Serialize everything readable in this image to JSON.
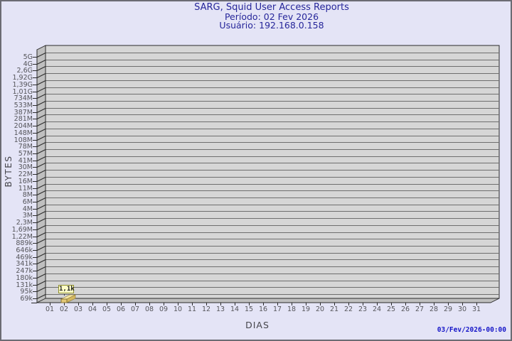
{
  "header": {
    "title": "SARG, Squid User Access Reports",
    "period": "Período: 02 Fev 2026",
    "user": "Usuário: 192.168.0.158"
  },
  "footer": {
    "generated": "03/Fev/2026-00:00"
  },
  "chart_data": {
    "type": "bar",
    "title": "SARG, Squid User Access Reports",
    "subtitle": [
      "Período: 02 Fev 2026",
      "Usuário: 192.168.0.158"
    ],
    "xlabel": "DIAS",
    "ylabel": "BYTES",
    "y_scale": "logarithmic",
    "categories": [
      "01",
      "02",
      "03",
      "04",
      "05",
      "06",
      "07",
      "08",
      "09",
      "10",
      "11",
      "12",
      "13",
      "14",
      "15",
      "16",
      "17",
      "18",
      "19",
      "20",
      "21",
      "22",
      "23",
      "24",
      "25",
      "26",
      "27",
      "28",
      "29",
      "30",
      "31"
    ],
    "values": [
      0,
      1100,
      0,
      0,
      0,
      0,
      0,
      0,
      0,
      0,
      0,
      0,
      0,
      0,
      0,
      0,
      0,
      0,
      0,
      0,
      0,
      0,
      0,
      0,
      0,
      0,
      0,
      0,
      0,
      0,
      0
    ],
    "point_label": "1,1k",
    "bars": [
      {
        "day": "02",
        "label": "1,1k",
        "bytes": 1100
      }
    ],
    "y_tick_labels_top_to_bottom": [
      "5G",
      "4G",
      "2,6G",
      "1,92G",
      "1,39G",
      "1,01G",
      "734M",
      "533M",
      "387M",
      "281M",
      "204M",
      "148M",
      "108M",
      "78M",
      "57M",
      "41M",
      "30M",
      "22M",
      "16M",
      "11M",
      "8M",
      "6M",
      "4M",
      "3M",
      "2,3M",
      "1,69M",
      "1,22M",
      "889k",
      "646k",
      "469k",
      "341k",
      "247k",
      "180k",
      "131k",
      "95k",
      "69k"
    ],
    "ylim_labels": [
      "69k",
      "5G"
    ],
    "grid": true,
    "legend": "none"
  },
  "colors": {
    "background": "#e4e4f6",
    "plot_background": "#d6d6d6",
    "wall": "#bfbfbf",
    "gridline": "#6e6e6e",
    "frame": "#2a2a2a",
    "title_text": "#26269a",
    "axis_text": "#55555a",
    "footer_text": "#1515c8",
    "tooltip_background": "#ffffc8",
    "bar_top": "#f4e6a6",
    "bar_front": "#e3c878",
    "bar_side": "#d4b860"
  }
}
